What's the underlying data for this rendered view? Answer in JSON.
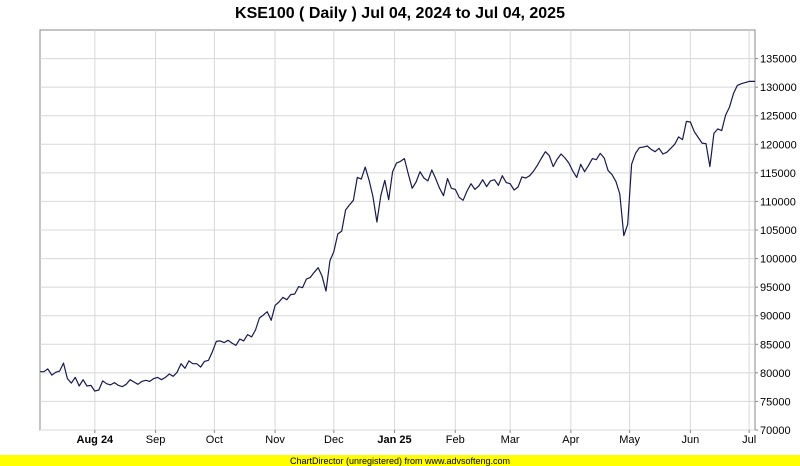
{
  "chart_data": {
    "type": "line",
    "title": "KSE100 ( Daily ) Jul 04, 2024 to Jul 04, 2025",
    "footer": "ChartDirector (unregistered) from www.advsofteng.com",
    "line_color": "#1a1a4a",
    "footer_bg": "#ffff00",
    "ylim": [
      70000,
      140000
    ],
    "y_ticks": [
      "70000",
      "75000",
      "80000",
      "85000",
      "90000",
      "95000",
      "100000",
      "105000",
      "110000",
      "115000",
      "120000",
      "125000",
      "130000",
      "135000"
    ],
    "y_tick_values": [
      70000,
      75000,
      80000,
      85000,
      90000,
      95000,
      100000,
      105000,
      110000,
      115000,
      120000,
      125000,
      130000,
      135000
    ],
    "xlim": [
      "2024-07-04",
      "2025-07-04"
    ],
    "x_ticks": [
      {
        "label": "Aug 24",
        "date": "2024-08-01",
        "bold": true
      },
      {
        "label": "Sep",
        "date": "2024-09-01",
        "bold": false
      },
      {
        "label": "Oct",
        "date": "2024-10-01",
        "bold": false
      },
      {
        "label": "Nov",
        "date": "2024-11-01",
        "bold": false
      },
      {
        "label": "Dec",
        "date": "2024-12-01",
        "bold": false
      },
      {
        "label": "Jan 25",
        "date": "2025-01-01",
        "bold": true
      },
      {
        "label": "Feb",
        "date": "2025-02-01",
        "bold": false
      },
      {
        "label": "Mar",
        "date": "2025-03-01",
        "bold": false
      },
      {
        "label": "Apr",
        "date": "2025-04-01",
        "bold": false
      },
      {
        "label": "May",
        "date": "2025-05-01",
        "bold": false
      },
      {
        "label": "Jun",
        "date": "2025-06-01",
        "bold": false
      },
      {
        "label": "Jul",
        "date": "2025-07-01",
        "bold": false
      }
    ],
    "series": [
      {
        "points": [
          [
            "2024-07-04",
            80200
          ],
          [
            "2024-07-06",
            80200
          ],
          [
            "2024-07-08",
            80700
          ],
          [
            "2024-07-10",
            79600
          ],
          [
            "2024-07-12",
            80100
          ],
          [
            "2024-07-14",
            80300
          ],
          [
            "2024-07-16",
            81700
          ],
          [
            "2024-07-18",
            79000
          ],
          [
            "2024-07-20",
            78200
          ],
          [
            "2024-07-22",
            79200
          ],
          [
            "2024-07-24",
            77700
          ],
          [
            "2024-07-26",
            78800
          ],
          [
            "2024-07-28",
            77700
          ],
          [
            "2024-07-30",
            77800
          ],
          [
            "2024-08-01",
            76800
          ],
          [
            "2024-08-03",
            77000
          ],
          [
            "2024-08-05",
            78600
          ],
          [
            "2024-08-07",
            78100
          ],
          [
            "2024-08-09",
            77900
          ],
          [
            "2024-08-11",
            78300
          ],
          [
            "2024-08-13",
            77800
          ],
          [
            "2024-08-15",
            77600
          ],
          [
            "2024-08-17",
            78000
          ],
          [
            "2024-08-19",
            78800
          ],
          [
            "2024-08-21",
            78400
          ],
          [
            "2024-08-23",
            78000
          ],
          [
            "2024-08-25",
            78500
          ],
          [
            "2024-08-27",
            78700
          ],
          [
            "2024-08-29",
            78500
          ],
          [
            "2024-08-31",
            79000
          ],
          [
            "2024-09-02",
            79200
          ],
          [
            "2024-09-04",
            78800
          ],
          [
            "2024-09-06",
            79200
          ],
          [
            "2024-09-08",
            79800
          ],
          [
            "2024-09-10",
            79400
          ],
          [
            "2024-09-12",
            80100
          ],
          [
            "2024-09-14",
            81600
          ],
          [
            "2024-09-16",
            80800
          ],
          [
            "2024-09-18",
            82100
          ],
          [
            "2024-09-20",
            81600
          ],
          [
            "2024-09-22",
            81600
          ],
          [
            "2024-09-24",
            81000
          ],
          [
            "2024-09-26",
            82000
          ],
          [
            "2024-09-28",
            82200
          ],
          [
            "2024-09-30",
            83700
          ],
          [
            "2024-10-02",
            85500
          ],
          [
            "2024-10-04",
            85600
          ],
          [
            "2024-10-06",
            85300
          ],
          [
            "2024-10-08",
            85700
          ],
          [
            "2024-10-10",
            85200
          ],
          [
            "2024-10-12",
            84800
          ],
          [
            "2024-10-14",
            85900
          ],
          [
            "2024-10-16",
            85600
          ],
          [
            "2024-10-18",
            86700
          ],
          [
            "2024-10-20",
            86300
          ],
          [
            "2024-10-22",
            87500
          ],
          [
            "2024-10-24",
            89600
          ],
          [
            "2024-10-26",
            90100
          ],
          [
            "2024-10-28",
            90700
          ],
          [
            "2024-10-30",
            89200
          ],
          [
            "2024-11-01",
            91800
          ],
          [
            "2024-11-03",
            92400
          ],
          [
            "2024-11-05",
            93200
          ],
          [
            "2024-11-07",
            92800
          ],
          [
            "2024-11-09",
            93700
          ],
          [
            "2024-11-11",
            93800
          ],
          [
            "2024-11-13",
            95100
          ],
          [
            "2024-11-15",
            94900
          ],
          [
            "2024-11-17",
            96400
          ],
          [
            "2024-11-19",
            96700
          ],
          [
            "2024-11-21",
            97600
          ],
          [
            "2024-11-23",
            98400
          ],
          [
            "2024-11-25",
            96900
          ],
          [
            "2024-11-27",
            94300
          ],
          [
            "2024-11-29",
            99600
          ],
          [
            "2024-12-01",
            101200
          ],
          [
            "2024-12-03",
            104300
          ],
          [
            "2024-12-05",
            104800
          ],
          [
            "2024-12-07",
            108500
          ],
          [
            "2024-12-09",
            109400
          ],
          [
            "2024-12-11",
            110200
          ],
          [
            "2024-12-13",
            114200
          ],
          [
            "2024-12-15",
            113900
          ],
          [
            "2024-12-17",
            116000
          ],
          [
            "2024-12-19",
            113700
          ],
          [
            "2024-12-21",
            110800
          ],
          [
            "2024-12-23",
            106400
          ],
          [
            "2024-12-25",
            111000
          ],
          [
            "2024-12-27",
            113700
          ],
          [
            "2024-12-29",
            110300
          ],
          [
            "2024-12-31",
            115200
          ],
          [
            "2025-01-02",
            116700
          ],
          [
            "2025-01-04",
            117000
          ],
          [
            "2025-01-06",
            117500
          ],
          [
            "2025-01-08",
            114800
          ],
          [
            "2025-01-10",
            112300
          ],
          [
            "2025-01-12",
            113400
          ],
          [
            "2025-01-14",
            115200
          ],
          [
            "2025-01-16",
            114100
          ],
          [
            "2025-01-18",
            113600
          ],
          [
            "2025-01-20",
            115500
          ],
          [
            "2025-01-22",
            114000
          ],
          [
            "2025-01-24",
            112300
          ],
          [
            "2025-01-26",
            111000
          ],
          [
            "2025-01-28",
            114000
          ],
          [
            "2025-01-30",
            112300
          ],
          [
            "2025-02-01",
            112100
          ],
          [
            "2025-02-03",
            110700
          ],
          [
            "2025-02-05",
            110200
          ],
          [
            "2025-02-07",
            111800
          ],
          [
            "2025-02-09",
            113100
          ],
          [
            "2025-02-11",
            112100
          ],
          [
            "2025-02-13",
            112700
          ],
          [
            "2025-02-15",
            113800
          ],
          [
            "2025-02-17",
            112600
          ],
          [
            "2025-02-19",
            113600
          ],
          [
            "2025-02-21",
            113800
          ],
          [
            "2025-02-23",
            112800
          ],
          [
            "2025-02-25",
            114500
          ],
          [
            "2025-02-27",
            113300
          ],
          [
            "2025-03-01",
            113100
          ],
          [
            "2025-03-03",
            112000
          ],
          [
            "2025-03-05",
            112500
          ],
          [
            "2025-03-07",
            114300
          ],
          [
            "2025-03-09",
            114100
          ],
          [
            "2025-03-11",
            114500
          ],
          [
            "2025-03-13",
            115300
          ],
          [
            "2025-03-15",
            116400
          ],
          [
            "2025-03-17",
            117600
          ],
          [
            "2025-03-19",
            118700
          ],
          [
            "2025-03-21",
            118000
          ],
          [
            "2025-03-23",
            116100
          ],
          [
            "2025-03-25",
            117400
          ],
          [
            "2025-03-27",
            118300
          ],
          [
            "2025-03-29",
            117600
          ],
          [
            "2025-03-31",
            116700
          ],
          [
            "2025-04-02",
            115300
          ],
          [
            "2025-04-04",
            114200
          ],
          [
            "2025-04-06",
            116500
          ],
          [
            "2025-04-08",
            115200
          ],
          [
            "2025-04-10",
            116300
          ],
          [
            "2025-04-12",
            117500
          ],
          [
            "2025-04-14",
            117300
          ],
          [
            "2025-04-16",
            118400
          ],
          [
            "2025-04-18",
            117600
          ],
          [
            "2025-04-20",
            115400
          ],
          [
            "2025-04-22",
            114700
          ],
          [
            "2025-04-24",
            113500
          ],
          [
            "2025-04-26",
            111300
          ],
          [
            "2025-04-28",
            104000
          ],
          [
            "2025-04-30",
            106000
          ],
          [
            "2025-05-02",
            116500
          ],
          [
            "2025-05-04",
            118400
          ],
          [
            "2025-05-06",
            119400
          ],
          [
            "2025-05-08",
            119500
          ],
          [
            "2025-05-10",
            119700
          ],
          [
            "2025-05-12",
            119100
          ],
          [
            "2025-05-14",
            118700
          ],
          [
            "2025-05-16",
            119300
          ],
          [
            "2025-05-18",
            118300
          ],
          [
            "2025-05-20",
            118600
          ],
          [
            "2025-05-22",
            119300
          ],
          [
            "2025-05-24",
            120000
          ],
          [
            "2025-05-26",
            121300
          ],
          [
            "2025-05-28",
            120800
          ],
          [
            "2025-05-30",
            124000
          ],
          [
            "2025-06-01",
            123900
          ],
          [
            "2025-06-03",
            122200
          ],
          [
            "2025-06-05",
            121200
          ],
          [
            "2025-06-07",
            120200
          ],
          [
            "2025-06-09",
            120100
          ],
          [
            "2025-06-11",
            116100
          ],
          [
            "2025-06-13",
            121900
          ],
          [
            "2025-06-15",
            122700
          ],
          [
            "2025-06-17",
            122400
          ],
          [
            "2025-06-19",
            125100
          ],
          [
            "2025-06-21",
            126500
          ],
          [
            "2025-06-23",
            128900
          ],
          [
            "2025-06-25",
            130300
          ],
          [
            "2025-06-27",
            130600
          ],
          [
            "2025-06-29",
            130800
          ],
          [
            "2025-07-01",
            131000
          ],
          [
            "2025-07-04",
            131000
          ]
        ]
      }
    ]
  }
}
